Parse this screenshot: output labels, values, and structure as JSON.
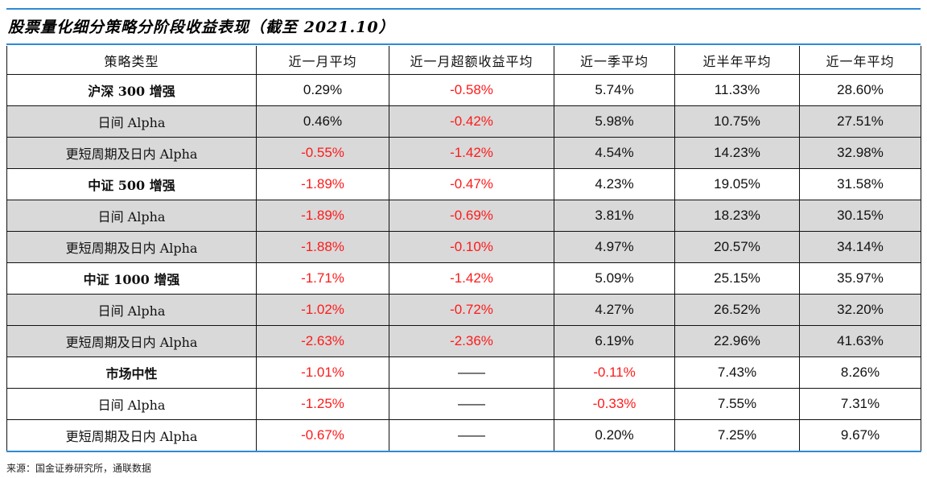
{
  "title": "股票量化细分策略分阶段收益表现（截至 2021.10）",
  "headers": [
    "策略类型",
    "近一月平均",
    "近一月超额收益平均",
    "近一季平均",
    "近半年平均",
    "近一年平均"
  ],
  "rows": [
    {
      "label": "沪深 300 增强",
      "group": true,
      "shaded": false,
      "values": [
        "0.29%",
        "-0.58%",
        "5.74%",
        "11.33%",
        "28.60%"
      ]
    },
    {
      "label": "日间 Alpha",
      "group": false,
      "shaded": true,
      "values": [
        "0.46%",
        "-0.42%",
        "5.98%",
        "10.75%",
        "27.51%"
      ]
    },
    {
      "label": "更短周期及日内 Alpha",
      "group": false,
      "shaded": true,
      "values": [
        "-0.55%",
        "-1.42%",
        "4.54%",
        "14.23%",
        "32.98%"
      ]
    },
    {
      "label": "中证 500 增强",
      "group": true,
      "shaded": false,
      "values": [
        "-1.89%",
        "-0.47%",
        "4.23%",
        "19.05%",
        "31.58%"
      ]
    },
    {
      "label": "日间 Alpha",
      "group": false,
      "shaded": true,
      "values": [
        "-1.89%",
        "-0.69%",
        "3.81%",
        "18.23%",
        "30.15%"
      ]
    },
    {
      "label": "更短周期及日内 Alpha",
      "group": false,
      "shaded": true,
      "values": [
        "-1.88%",
        "-0.10%",
        "4.97%",
        "20.57%",
        "34.14%"
      ]
    },
    {
      "label": "中证 1000 增强",
      "group": true,
      "shaded": false,
      "values": [
        "-1.71%",
        "-1.42%",
        "5.09%",
        "25.15%",
        "35.97%"
      ]
    },
    {
      "label": "日间 Alpha",
      "group": false,
      "shaded": true,
      "values": [
        "-1.02%",
        "-0.72%",
        "4.27%",
        "26.52%",
        "32.20%"
      ]
    },
    {
      "label": "更短周期及日内 Alpha",
      "group": false,
      "shaded": true,
      "values": [
        "-2.63%",
        "-2.36%",
        "6.19%",
        "22.96%",
        "41.63%"
      ]
    },
    {
      "label": "市场中性",
      "group": true,
      "shaded": false,
      "values": [
        "-1.01%",
        "——",
        "-0.11%",
        "7.43%",
        "8.26%"
      ]
    },
    {
      "label": "日间 Alpha",
      "group": false,
      "shaded": false,
      "values": [
        "-1.25%",
        "——",
        "-0.33%",
        "7.55%",
        "7.31%"
      ]
    },
    {
      "label": "更短周期及日内 Alpha",
      "group": false,
      "shaded": false,
      "values": [
        "-0.67%",
        "——",
        "0.20%",
        "7.25%",
        "9.67%"
      ]
    }
  ],
  "source": "来源：国金证券研究所，通联数据",
  "colors": {
    "rule": "#2d8ad8",
    "negative": "#ff1a1a",
    "shade": "#d9d9d9"
  }
}
